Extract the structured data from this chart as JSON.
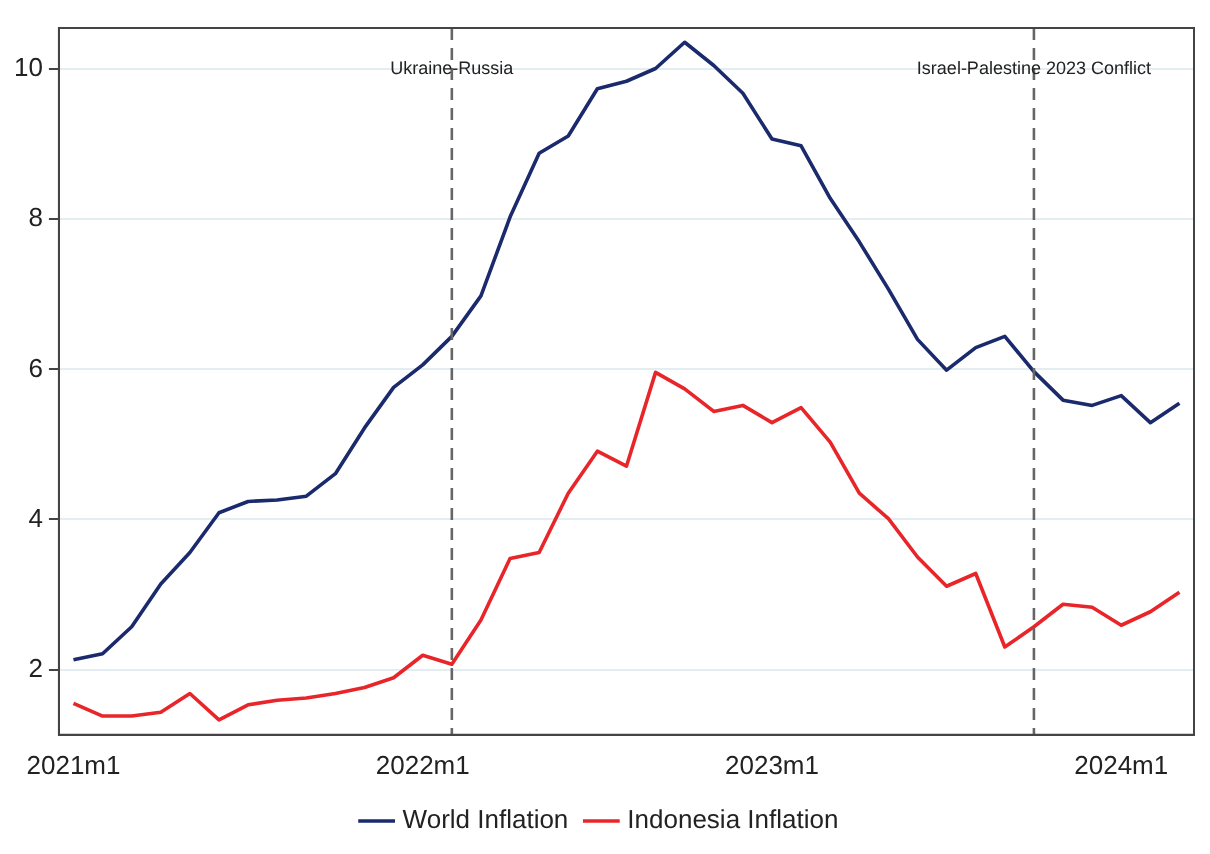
{
  "chart_data": {
    "type": "line",
    "x": [
      "2021-01",
      "2021-02",
      "2021-03",
      "2021-04",
      "2021-05",
      "2021-06",
      "2021-07",
      "2021-08",
      "2021-09",
      "2021-10",
      "2021-11",
      "2021-12",
      "2022-01",
      "2022-02",
      "2022-03",
      "2022-04",
      "2022-05",
      "2022-06",
      "2022-07",
      "2022-08",
      "2022-09",
      "2022-10",
      "2022-11",
      "2022-12",
      "2023-01",
      "2023-02",
      "2023-03",
      "2023-04",
      "2023-05",
      "2023-06",
      "2023-07",
      "2023-08",
      "2023-09",
      "2023-10",
      "2023-11",
      "2023-12",
      "2024-01",
      "2024-02",
      "2024-03"
    ],
    "series": [
      {
        "name": "World Inflation",
        "color": "#1a2a6c",
        "values": [
          2.13,
          2.21,
          2.57,
          3.14,
          3.56,
          4.09,
          4.24,
          4.26,
          4.31,
          4.61,
          5.22,
          5.76,
          6.06,
          6.44,
          6.98,
          8.03,
          8.88,
          9.11,
          9.74,
          9.84,
          10.01,
          10.36,
          10.05,
          9.68,
          9.07,
          8.98,
          8.28,
          7.7,
          7.07,
          6.4,
          5.99,
          6.29,
          6.44,
          5.97,
          5.59,
          5.52,
          5.65,
          5.29,
          5.55
        ]
      },
      {
        "name": "Indonesia Inflation",
        "color": "#e8262a",
        "values": [
          1.55,
          1.38,
          1.38,
          1.43,
          1.68,
          1.33,
          1.53,
          1.59,
          1.62,
          1.68,
          1.76,
          1.89,
          2.19,
          2.07,
          2.66,
          3.48,
          3.56,
          4.35,
          4.91,
          4.71,
          5.96,
          5.74,
          5.44,
          5.52,
          5.29,
          5.49,
          5.03,
          4.35,
          4.01,
          3.5,
          3.11,
          3.28,
          2.3,
          2.57,
          2.87,
          2.83,
          2.59,
          2.77,
          3.03
        ]
      }
    ],
    "xlim": [
      "2020-12-16",
      "2024-03-16"
    ],
    "xticks": [
      {
        "value": "2021-01",
        "label": "2021m1"
      },
      {
        "value": "2022-01",
        "label": "2022m1"
      },
      {
        "value": "2023-01",
        "label": "2023m1"
      },
      {
        "value": "2024-01",
        "label": "2024m1"
      }
    ],
    "ylim": [
      1.13,
      10.55
    ],
    "yticks": [
      2,
      4,
      6,
      8,
      10
    ],
    "ref_lines": [
      {
        "axis": "x",
        "value": "2022-02",
        "label": "Ukraine-Russia",
        "color": "#666666",
        "line_style": "dashed"
      },
      {
        "axis": "x",
        "value": "2023-10",
        "label": "Israel-Palestine 2023 Conflict",
        "color": "#666666",
        "line_style": "dashed"
      }
    ],
    "grid": "y",
    "legend": "bottom"
  }
}
